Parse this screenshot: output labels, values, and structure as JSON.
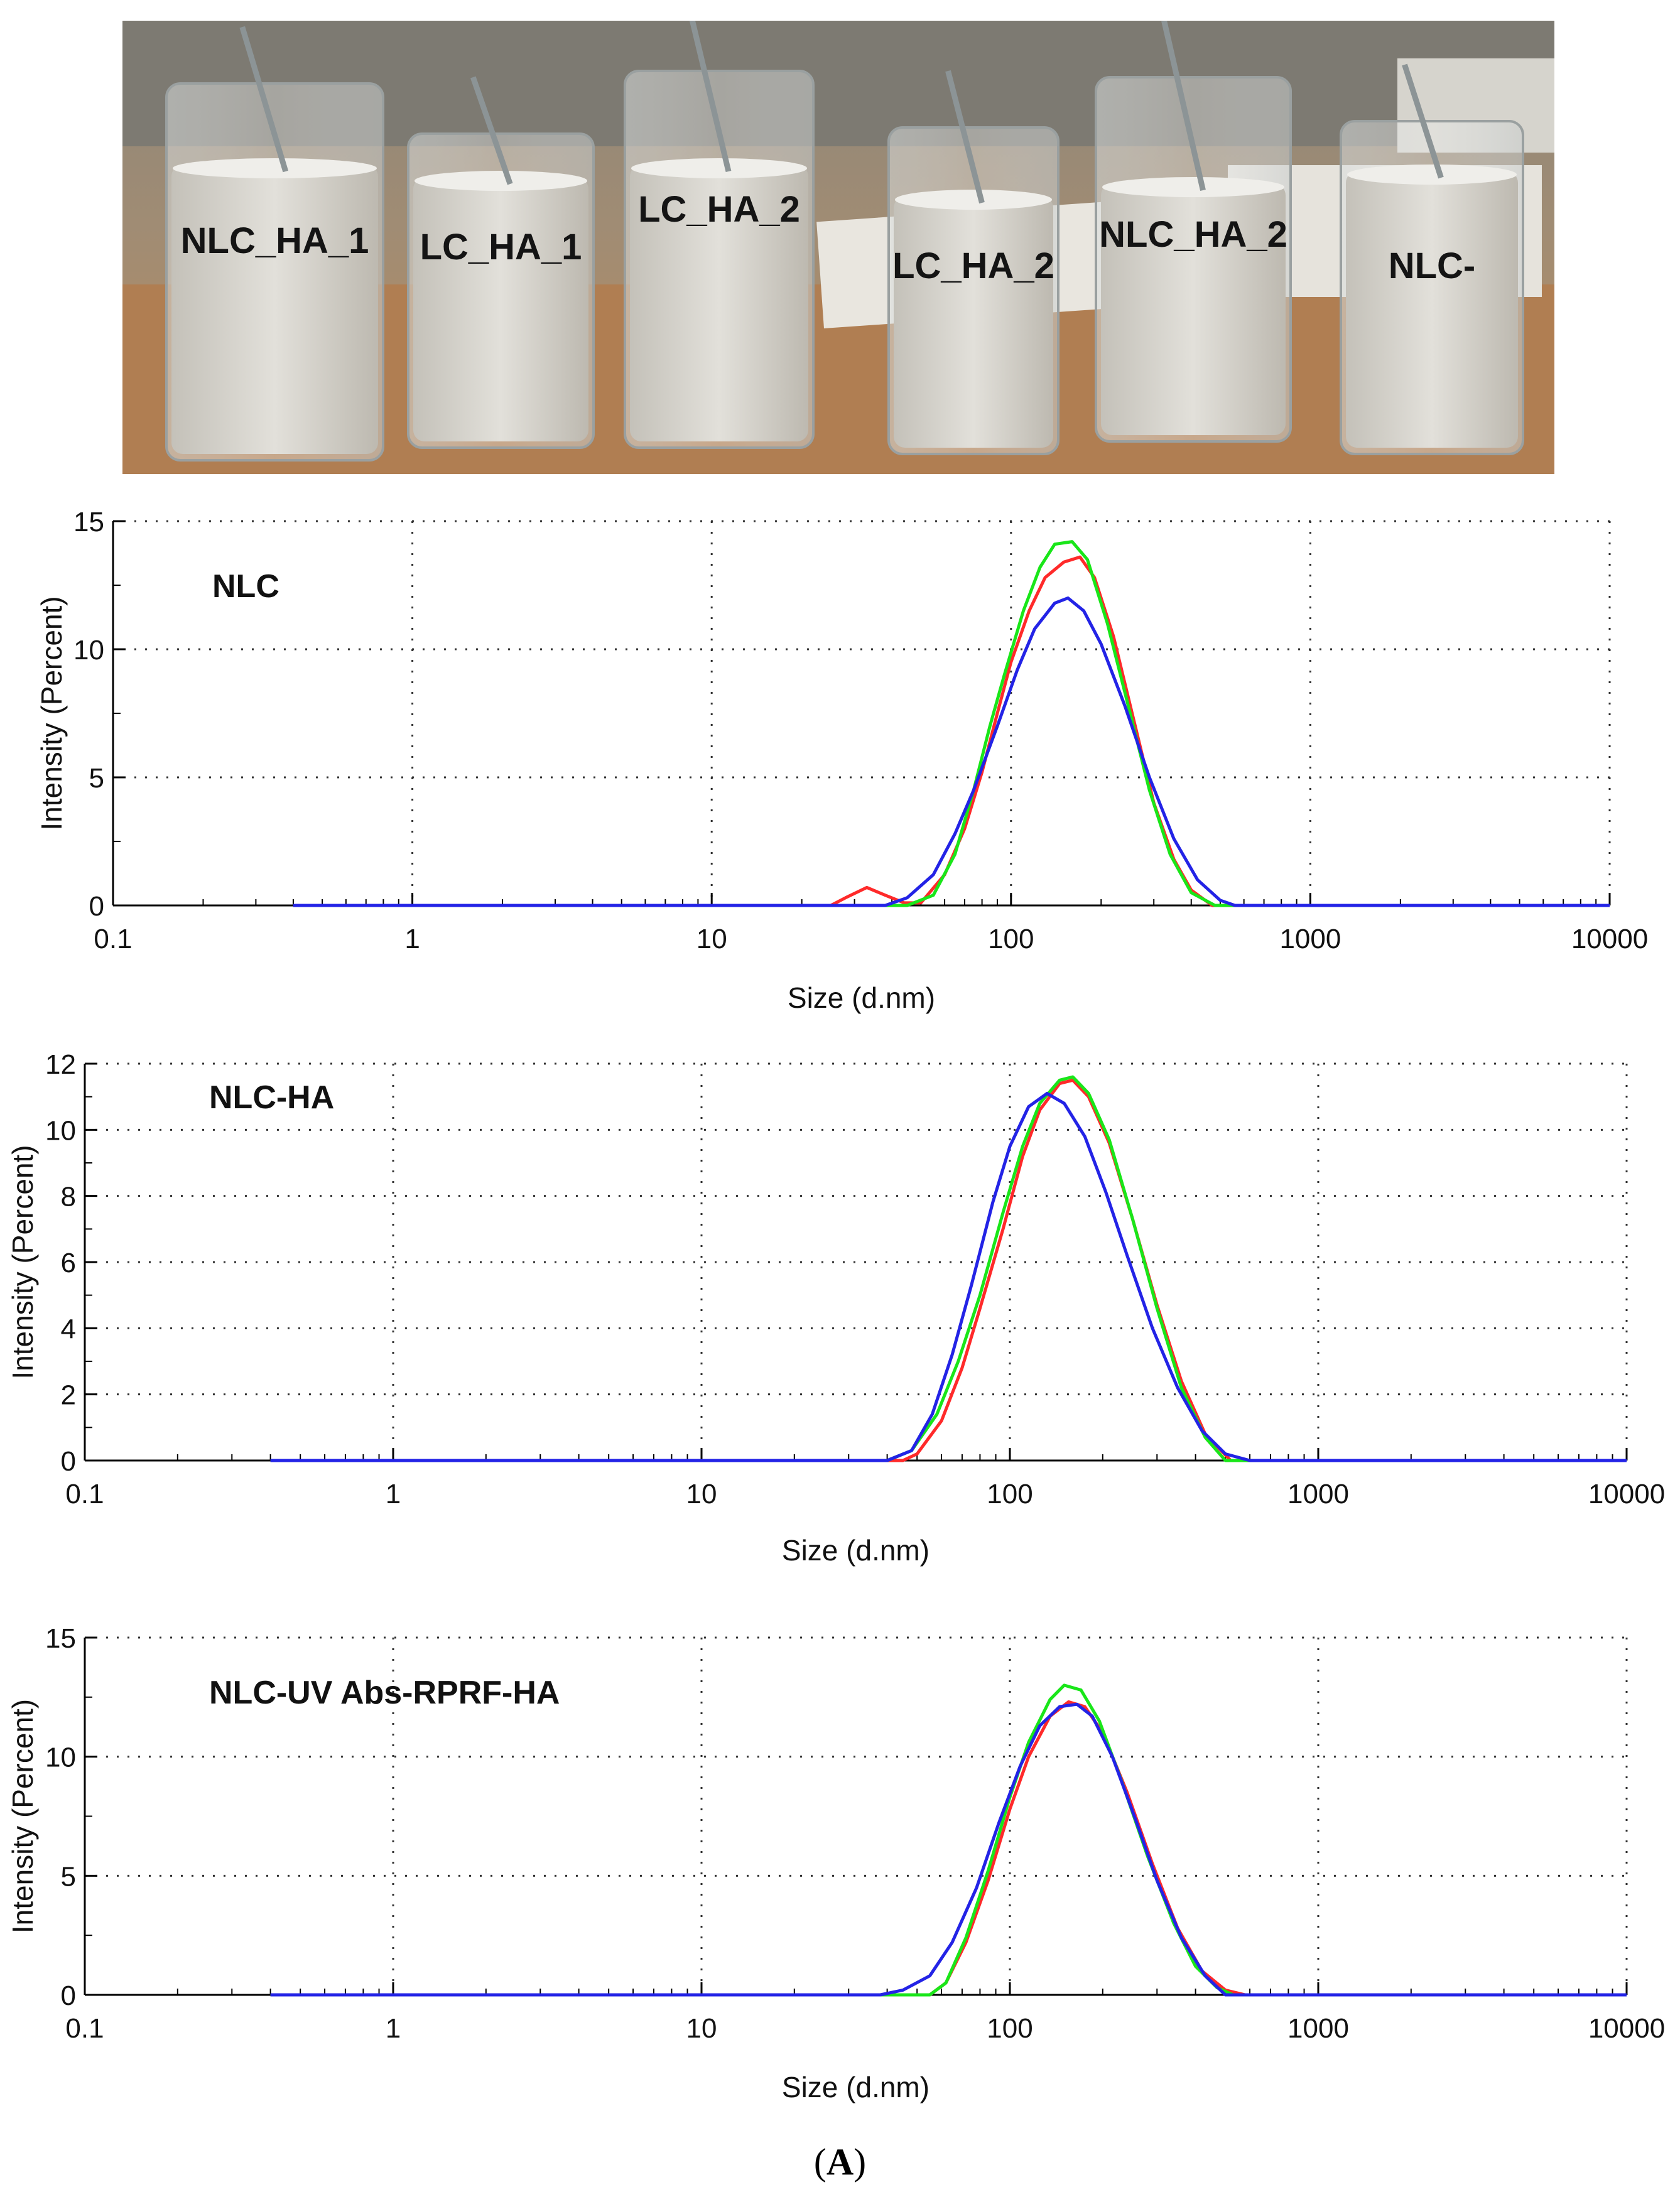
{
  "photo": {
    "beaker_labels": [
      "NLC_HA_1",
      "LC_HA_1",
      "LC_HA_2",
      "LC_HA_2",
      "NLC_HA_2",
      "NLC-"
    ]
  },
  "figure_label": {
    "open": "(",
    "letter": "A",
    "close": ")"
  },
  "colors": {
    "red": "#ff2a2a",
    "green": "#19e619",
    "blue": "#2323e6",
    "grid": "#333333"
  },
  "chart_data": [
    {
      "type": "line",
      "title": "NLC",
      "xlabel": "Size (d.nm)",
      "ylabel": "Intensity (Percent)",
      "xscale": "log",
      "xlim": [
        0.1,
        10000
      ],
      "ylim": [
        0,
        15
      ],
      "xticks": [
        "0.1",
        "1",
        "10",
        "100",
        "1000",
        "10000"
      ],
      "yticks": [
        "0",
        "5",
        "10",
        "15"
      ],
      "grid": true,
      "series": [
        {
          "color": "red",
          "points": [
            [
              0.4,
              0
            ],
            [
              25,
              0
            ],
            [
              28,
              0.3
            ],
            [
              33,
              0.7
            ],
            [
              38,
              0.4
            ],
            [
              44,
              0.1
            ],
            [
              50,
              0.1
            ],
            [
              60,
              1.2
            ],
            [
              70,
              3
            ],
            [
              80,
              5.2
            ],
            [
              90,
              7.5
            ],
            [
              100,
              9.5
            ],
            [
              115,
              11.5
            ],
            [
              130,
              12.8
            ],
            [
              150,
              13.4
            ],
            [
              170,
              13.6
            ],
            [
              190,
              12.8
            ],
            [
              220,
              10.5
            ],
            [
              260,
              7
            ],
            [
              300,
              4
            ],
            [
              350,
              1.8
            ],
            [
              400,
              0.6
            ],
            [
              470,
              0
            ],
            [
              10000,
              0
            ]
          ]
        },
        {
          "color": "green",
          "points": [
            [
              0.4,
              0
            ],
            [
              45,
              0
            ],
            [
              55,
              0.4
            ],
            [
              65,
              2
            ],
            [
              75,
              4.5
            ],
            [
              85,
              7
            ],
            [
              95,
              9
            ],
            [
              110,
              11.5
            ],
            [
              125,
              13.2
            ],
            [
              140,
              14.1
            ],
            [
              160,
              14.2
            ],
            [
              180,
              13.5
            ],
            [
              210,
              11
            ],
            [
              250,
              7.5
            ],
            [
              290,
              4.5
            ],
            [
              340,
              2
            ],
            [
              400,
              0.5
            ],
            [
              480,
              0
            ],
            [
              10000,
              0
            ]
          ]
        },
        {
          "color": "blue",
          "points": [
            [
              0.4,
              0
            ],
            [
              38,
              0
            ],
            [
              45,
              0.3
            ],
            [
              55,
              1.2
            ],
            [
              65,
              2.8
            ],
            [
              75,
              4.5
            ],
            [
              90,
              7
            ],
            [
              105,
              9.2
            ],
            [
              120,
              10.8
            ],
            [
              140,
              11.8
            ],
            [
              155,
              12
            ],
            [
              175,
              11.5
            ],
            [
              200,
              10.2
            ],
            [
              240,
              7.8
            ],
            [
              290,
              5
            ],
            [
              350,
              2.6
            ],
            [
              420,
              1
            ],
            [
              500,
              0.2
            ],
            [
              560,
              0
            ],
            [
              10000,
              0
            ]
          ]
        }
      ]
    },
    {
      "type": "line",
      "title": "NLC-HA",
      "xlabel": "Size (d.nm)",
      "ylabel": "Intensity (Percent)",
      "xscale": "log",
      "xlim": [
        0.1,
        10000
      ],
      "ylim": [
        0,
        12
      ],
      "xticks": [
        "0.1",
        "1",
        "10",
        "100",
        "1000",
        "10000"
      ],
      "yticks": [
        "0",
        "2",
        "4",
        "6",
        "8",
        "10",
        "12"
      ],
      "grid": true,
      "series": [
        {
          "color": "red",
          "points": [
            [
              0.4,
              0
            ],
            [
              45,
              0
            ],
            [
              50,
              0.2
            ],
            [
              60,
              1.2
            ],
            [
              70,
              2.8
            ],
            [
              80,
              4.6
            ],
            [
              95,
              7
            ],
            [
              110,
              9.2
            ],
            [
              125,
              10.6
            ],
            [
              145,
              11.4
            ],
            [
              160,
              11.5
            ],
            [
              180,
              11
            ],
            [
              210,
              9.6
            ],
            [
              250,
              7.3
            ],
            [
              300,
              4.7
            ],
            [
              360,
              2.4
            ],
            [
              430,
              0.8
            ],
            [
              520,
              0
            ],
            [
              10000,
              0
            ]
          ]
        },
        {
          "color": "green",
          "points": [
            [
              0.4,
              0
            ],
            [
              40,
              0
            ],
            [
              48,
              0.3
            ],
            [
              58,
              1.4
            ],
            [
              68,
              3
            ],
            [
              80,
              5
            ],
            [
              95,
              7.5
            ],
            [
              110,
              9.5
            ],
            [
              125,
              10.8
            ],
            [
              145,
              11.5
            ],
            [
              160,
              11.6
            ],
            [
              180,
              11.1
            ],
            [
              210,
              9.7
            ],
            [
              250,
              7.3
            ],
            [
              300,
              4.6
            ],
            [
              360,
              2.2
            ],
            [
              430,
              0.7
            ],
            [
              500,
              0
            ],
            [
              10000,
              0
            ]
          ]
        },
        {
          "color": "blue",
          "points": [
            [
              0.4,
              0
            ],
            [
              40,
              0
            ],
            [
              48,
              0.3
            ],
            [
              56,
              1.4
            ],
            [
              65,
              3.2
            ],
            [
              75,
              5.3
            ],
            [
              88,
              7.8
            ],
            [
              100,
              9.5
            ],
            [
              115,
              10.7
            ],
            [
              132,
              11.1
            ],
            [
              150,
              10.8
            ],
            [
              175,
              9.8
            ],
            [
              205,
              8.1
            ],
            [
              240,
              6.2
            ],
            [
              290,
              4
            ],
            [
              350,
              2.2
            ],
            [
              420,
              0.9
            ],
            [
              500,
              0.2
            ],
            [
              600,
              0
            ],
            [
              10000,
              0
            ]
          ]
        }
      ]
    },
    {
      "type": "line",
      "title": "NLC-UV Abs-RPRF-HA",
      "xlabel": "Size (d.nm)",
      "ylabel": "Intensity (Percent)",
      "xscale": "log",
      "xlim": [
        0.1,
        10000
      ],
      "ylim": [
        0,
        15
      ],
      "xticks": [
        "0.1",
        "1",
        "10",
        "100",
        "1000",
        "10000"
      ],
      "yticks": [
        "0",
        "5",
        "10",
        "15"
      ],
      "grid": true,
      "series": [
        {
          "color": "red",
          "points": [
            [
              0.4,
              0
            ],
            [
              55,
              0
            ],
            [
              62,
              0.5
            ],
            [
              72,
              2.2
            ],
            [
              85,
              4.8
            ],
            [
              100,
              7.8
            ],
            [
              115,
              10
            ],
            [
              135,
              11.7
            ],
            [
              155,
              12.3
            ],
            [
              175,
              12.1
            ],
            [
              200,
              11
            ],
            [
              240,
              8.5
            ],
            [
              290,
              5.5
            ],
            [
              350,
              2.8
            ],
            [
              420,
              1
            ],
            [
              500,
              0.2
            ],
            [
              580,
              0
            ],
            [
              10000,
              0
            ]
          ]
        },
        {
          "color": "green",
          "points": [
            [
              0.4,
              0
            ],
            [
              55,
              0
            ],
            [
              62,
              0.5
            ],
            [
              72,
              2.4
            ],
            [
              85,
              5.2
            ],
            [
              100,
              8.3
            ],
            [
              115,
              10.6
            ],
            [
              135,
              12.4
            ],
            [
              150,
              13
            ],
            [
              170,
              12.8
            ],
            [
              195,
              11.5
            ],
            [
              230,
              9
            ],
            [
              280,
              5.8
            ],
            [
              340,
              3
            ],
            [
              400,
              1.2
            ],
            [
              470,
              0.3
            ],
            [
              530,
              0
            ],
            [
              10000,
              0
            ]
          ]
        },
        {
          "color": "blue",
          "points": [
            [
              0.4,
              0
            ],
            [
              38,
              0
            ],
            [
              45,
              0.2
            ],
            [
              55,
              0.8
            ],
            [
              65,
              2.2
            ],
            [
              78,
              4.5
            ],
            [
              92,
              7.2
            ],
            [
              108,
              9.6
            ],
            [
              125,
              11.3
            ],
            [
              145,
              12.1
            ],
            [
              165,
              12.2
            ],
            [
              185,
              11.7
            ],
            [
              215,
              10
            ],
            [
              255,
              7.4
            ],
            [
              300,
              4.8
            ],
            [
              360,
              2.4
            ],
            [
              430,
              0.8
            ],
            [
              500,
              0
            ],
            [
              10000,
              0
            ]
          ]
        }
      ]
    }
  ]
}
